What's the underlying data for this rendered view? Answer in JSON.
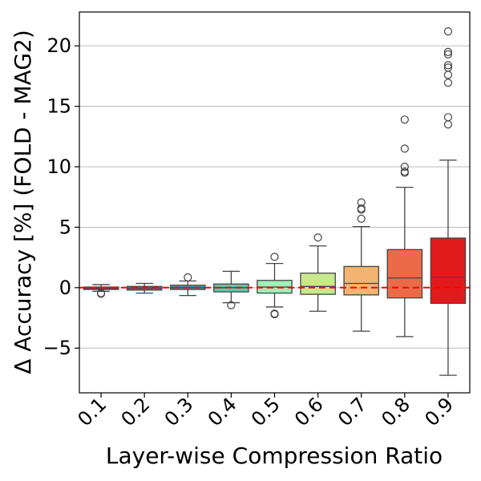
{
  "chart_data": {
    "type": "box",
    "title": "",
    "xlabel": "Layer-wise Compression Ratio",
    "ylabel": "Δ Accuracy [%] (FOLD - MAG2)",
    "ylim": [
      -8.7,
      22.8
    ],
    "yticks": [
      -5,
      0,
      5,
      10,
      15,
      20
    ],
    "ytick_labels": [
      "−5",
      "0",
      "5",
      "10",
      "15",
      "20"
    ],
    "grid": "horizontal",
    "reference_line": {
      "y": 0,
      "style": "dashed",
      "color": "#ff0000"
    },
    "categories": [
      "0.1",
      "0.2",
      "0.3",
      "0.4",
      "0.5",
      "0.6",
      "0.7",
      "0.8",
      "0.9"
    ],
    "colors": [
      "#6a4c9c",
      "#3d7ab8",
      "#3da3b0",
      "#5fc9aa",
      "#9ff0b6",
      "#c9e88c",
      "#f2b470",
      "#eb6b47",
      "#e31a1c"
    ],
    "boxes": [
      {
        "min": -0.3,
        "q1": -0.15,
        "median": -0.05,
        "q3": 0.05,
        "max": 0.25,
        "outliers": [
          -0.45,
          -0.5
        ]
      },
      {
        "min": -0.45,
        "q1": -0.2,
        "median": -0.05,
        "q3": 0.1,
        "max": 0.35,
        "outliers": []
      },
      {
        "min": -0.65,
        "q1": -0.15,
        "median": 0.0,
        "q3": 0.2,
        "max": 0.55,
        "outliers": [
          0.85
        ]
      },
      {
        "min": -1.25,
        "q1": -0.35,
        "median": 0.0,
        "q3": 0.3,
        "max": 1.35,
        "outliers": [
          -1.45
        ]
      },
      {
        "min": -1.6,
        "q1": -0.45,
        "median": 0.05,
        "q3": 0.6,
        "max": 2.0,
        "outliers": [
          -2.15,
          -2.2,
          2.55
        ]
      },
      {
        "min": -1.95,
        "q1": -0.55,
        "median": 0.1,
        "q3": 1.2,
        "max": 3.45,
        "outliers": [
          4.15
        ]
      },
      {
        "min": -3.6,
        "q1": -0.6,
        "median": 0.35,
        "q3": 1.75,
        "max": 5.05,
        "outliers": [
          5.7,
          6.45,
          6.55,
          7.05
        ]
      },
      {
        "min": -4.05,
        "q1": -0.85,
        "median": 0.8,
        "q3": 3.15,
        "max": 8.3,
        "outliers": [
          9.5,
          9.6,
          10.0,
          11.5,
          13.9
        ]
      },
      {
        "min": -7.25,
        "q1": -1.3,
        "median": 0.85,
        "q3": 4.1,
        "max": 10.55,
        "outliers": [
          13.5,
          14.1,
          16.95,
          17.6,
          18.2,
          18.4,
          19.3,
          19.5,
          21.2
        ]
      }
    ]
  }
}
